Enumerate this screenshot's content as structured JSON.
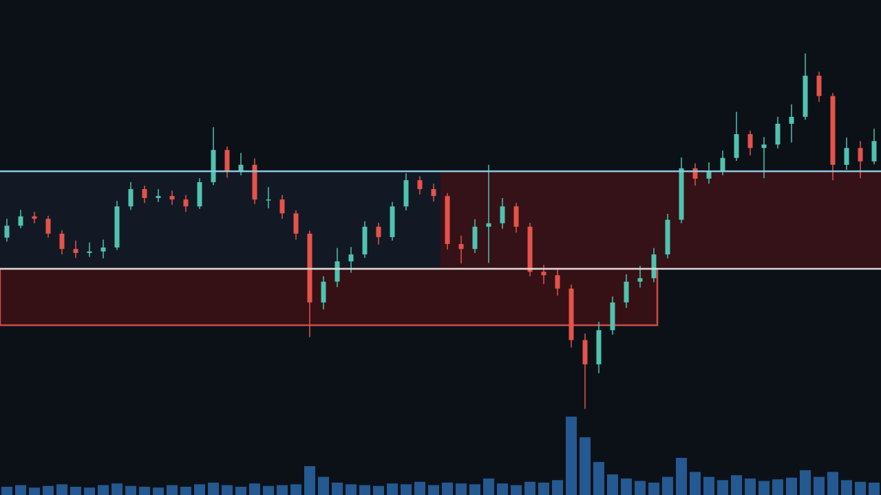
{
  "chart_data": {
    "type": "candlestick",
    "ylim": [
      0,
      100
    ],
    "up_color": "#4fc3b0",
    "down_color": "#e5534b",
    "open": [
      52.0,
      54.4,
      56.3,
      55.8,
      52.8,
      49.7,
      48.9,
      49.2,
      50.0,
      58.3,
      61.8,
      60.0,
      60.4,
      59.7,
      58.3,
      63.2,
      69.7,
      65.3,
      66.7,
      59.7,
      59.7,
      56.9,
      52.8,
      38.9,
      43.1,
      47.2,
      48.6,
      54.2,
      52.1,
      58.3,
      63.6,
      61.8,
      60.4,
      50.7,
      49.7,
      54.2,
      54.9,
      58.3,
      54.2,
      45.1,
      44.4,
      41.7,
      31.3,
      26.4,
      33.3,
      38.9,
      43.1,
      43.8,
      48.6,
      55.6,
      66.0,
      63.9,
      65.3,
      68.1,
      72.9,
      70.1,
      70.8,
      75.0,
      76.4,
      84.7,
      80.6,
      66.7,
      70.1,
      67.4
    ],
    "high": [
      55.8,
      57.6,
      57.2,
      56.4,
      53.5,
      51.4,
      51.0,
      51.6,
      59.4,
      63.2,
      62.5,
      61.8,
      61.5,
      60.6,
      64.0,
      74.3,
      70.4,
      69.1,
      68.0,
      62.2,
      60.6,
      57.5,
      53.4,
      44.2,
      49.9,
      50.1,
      55.3,
      55.0,
      59.2,
      65.0,
      64.4,
      62.9,
      61.0,
      52.4,
      55.7,
      66.7,
      60.0,
      59.0,
      55.0,
      46.5,
      45.6,
      42.5,
      32.6,
      35.0,
      40.1,
      44.6,
      46.3,
      49.9,
      56.8,
      68.2,
      67.0,
      67.2,
      69.6,
      77.4,
      73.6,
      72.3,
      76.4,
      78.9,
      89.2,
      85.5,
      81.2,
      72.2,
      71.5,
      74.0
    ],
    "low": [
      51.2,
      53.9,
      54.9,
      52.0,
      48.6,
      47.9,
      48.1,
      47.8,
      49.5,
      57.6,
      59.0,
      59.2,
      58.6,
      57.2,
      57.8,
      62.6,
      64.1,
      64.6,
      58.8,
      57.9,
      55.8,
      51.6,
      31.9,
      37.5,
      42.0,
      44.9,
      47.9,
      50.6,
      51.4,
      57.5,
      60.7,
      59.3,
      49.6,
      46.8,
      48.9,
      46.9,
      53.8,
      53.0,
      44.2,
      42.6,
      40.3,
      29.8,
      17.4,
      24.6,
      32.4,
      37.8,
      41.9,
      43.0,
      47.8,
      54.9,
      62.5,
      62.9,
      64.6,
      67.5,
      68.6,
      64.0,
      70.0,
      71.2,
      75.8,
      79.4,
      63.6,
      65.7,
      64.0,
      66.8
    ],
    "close": [
      54.4,
      56.3,
      55.8,
      52.8,
      49.7,
      48.9,
      49.2,
      50.0,
      58.3,
      61.8,
      60.0,
      60.4,
      59.7,
      58.3,
      63.2,
      69.7,
      65.3,
      66.7,
      59.7,
      59.7,
      56.9,
      52.8,
      38.9,
      43.1,
      47.2,
      48.6,
      54.2,
      52.1,
      58.3,
      63.6,
      61.8,
      60.4,
      50.7,
      49.7,
      54.2,
      54.9,
      58.3,
      54.2,
      45.1,
      44.4,
      41.7,
      31.3,
      26.4,
      33.3,
      38.9,
      43.1,
      43.8,
      48.6,
      55.6,
      66.0,
      63.9,
      65.3,
      68.1,
      72.9,
      70.1,
      70.8,
      75.0,
      76.4,
      84.7,
      80.6,
      66.7,
      70.1,
      67.4,
      71.5
    ],
    "volume": {
      "color": "#2b6cb0",
      "ylim": [
        0,
        100
      ],
      "values": [
        10,
        12,
        9,
        11,
        13,
        10,
        9,
        12,
        14,
        11,
        10,
        9,
        12,
        10,
        13,
        15,
        12,
        10,
        14,
        11,
        12,
        13,
        35,
        22,
        15,
        13,
        12,
        11,
        14,
        13,
        16,
        12,
        15,
        14,
        13,
        20,
        14,
        12,
        16,
        15,
        18,
        95,
        70,
        40,
        25,
        20,
        17,
        15,
        22,
        45,
        28,
        22,
        18,
        24,
        20,
        17,
        19,
        21,
        30,
        22,
        28,
        18,
        16,
        15
      ]
    },
    "zones": [
      {
        "from": 0,
        "to": 63.5,
        "low": 45.7,
        "high": 65.4,
        "color": "#131b26"
      },
      {
        "from": 31.5,
        "to": 63.5,
        "low": 45.7,
        "high": 65.4,
        "color": "#3a1216"
      },
      {
        "from": 0,
        "to": 47.25,
        "low": 34.3,
        "high": 45.7,
        "color": "#3a1216",
        "border": "#e5534b"
      }
    ],
    "levels": [
      {
        "value": 65.4,
        "color": "#8ec9e0"
      },
      {
        "value": 45.7,
        "color": "#d9d9d9"
      }
    ]
  }
}
